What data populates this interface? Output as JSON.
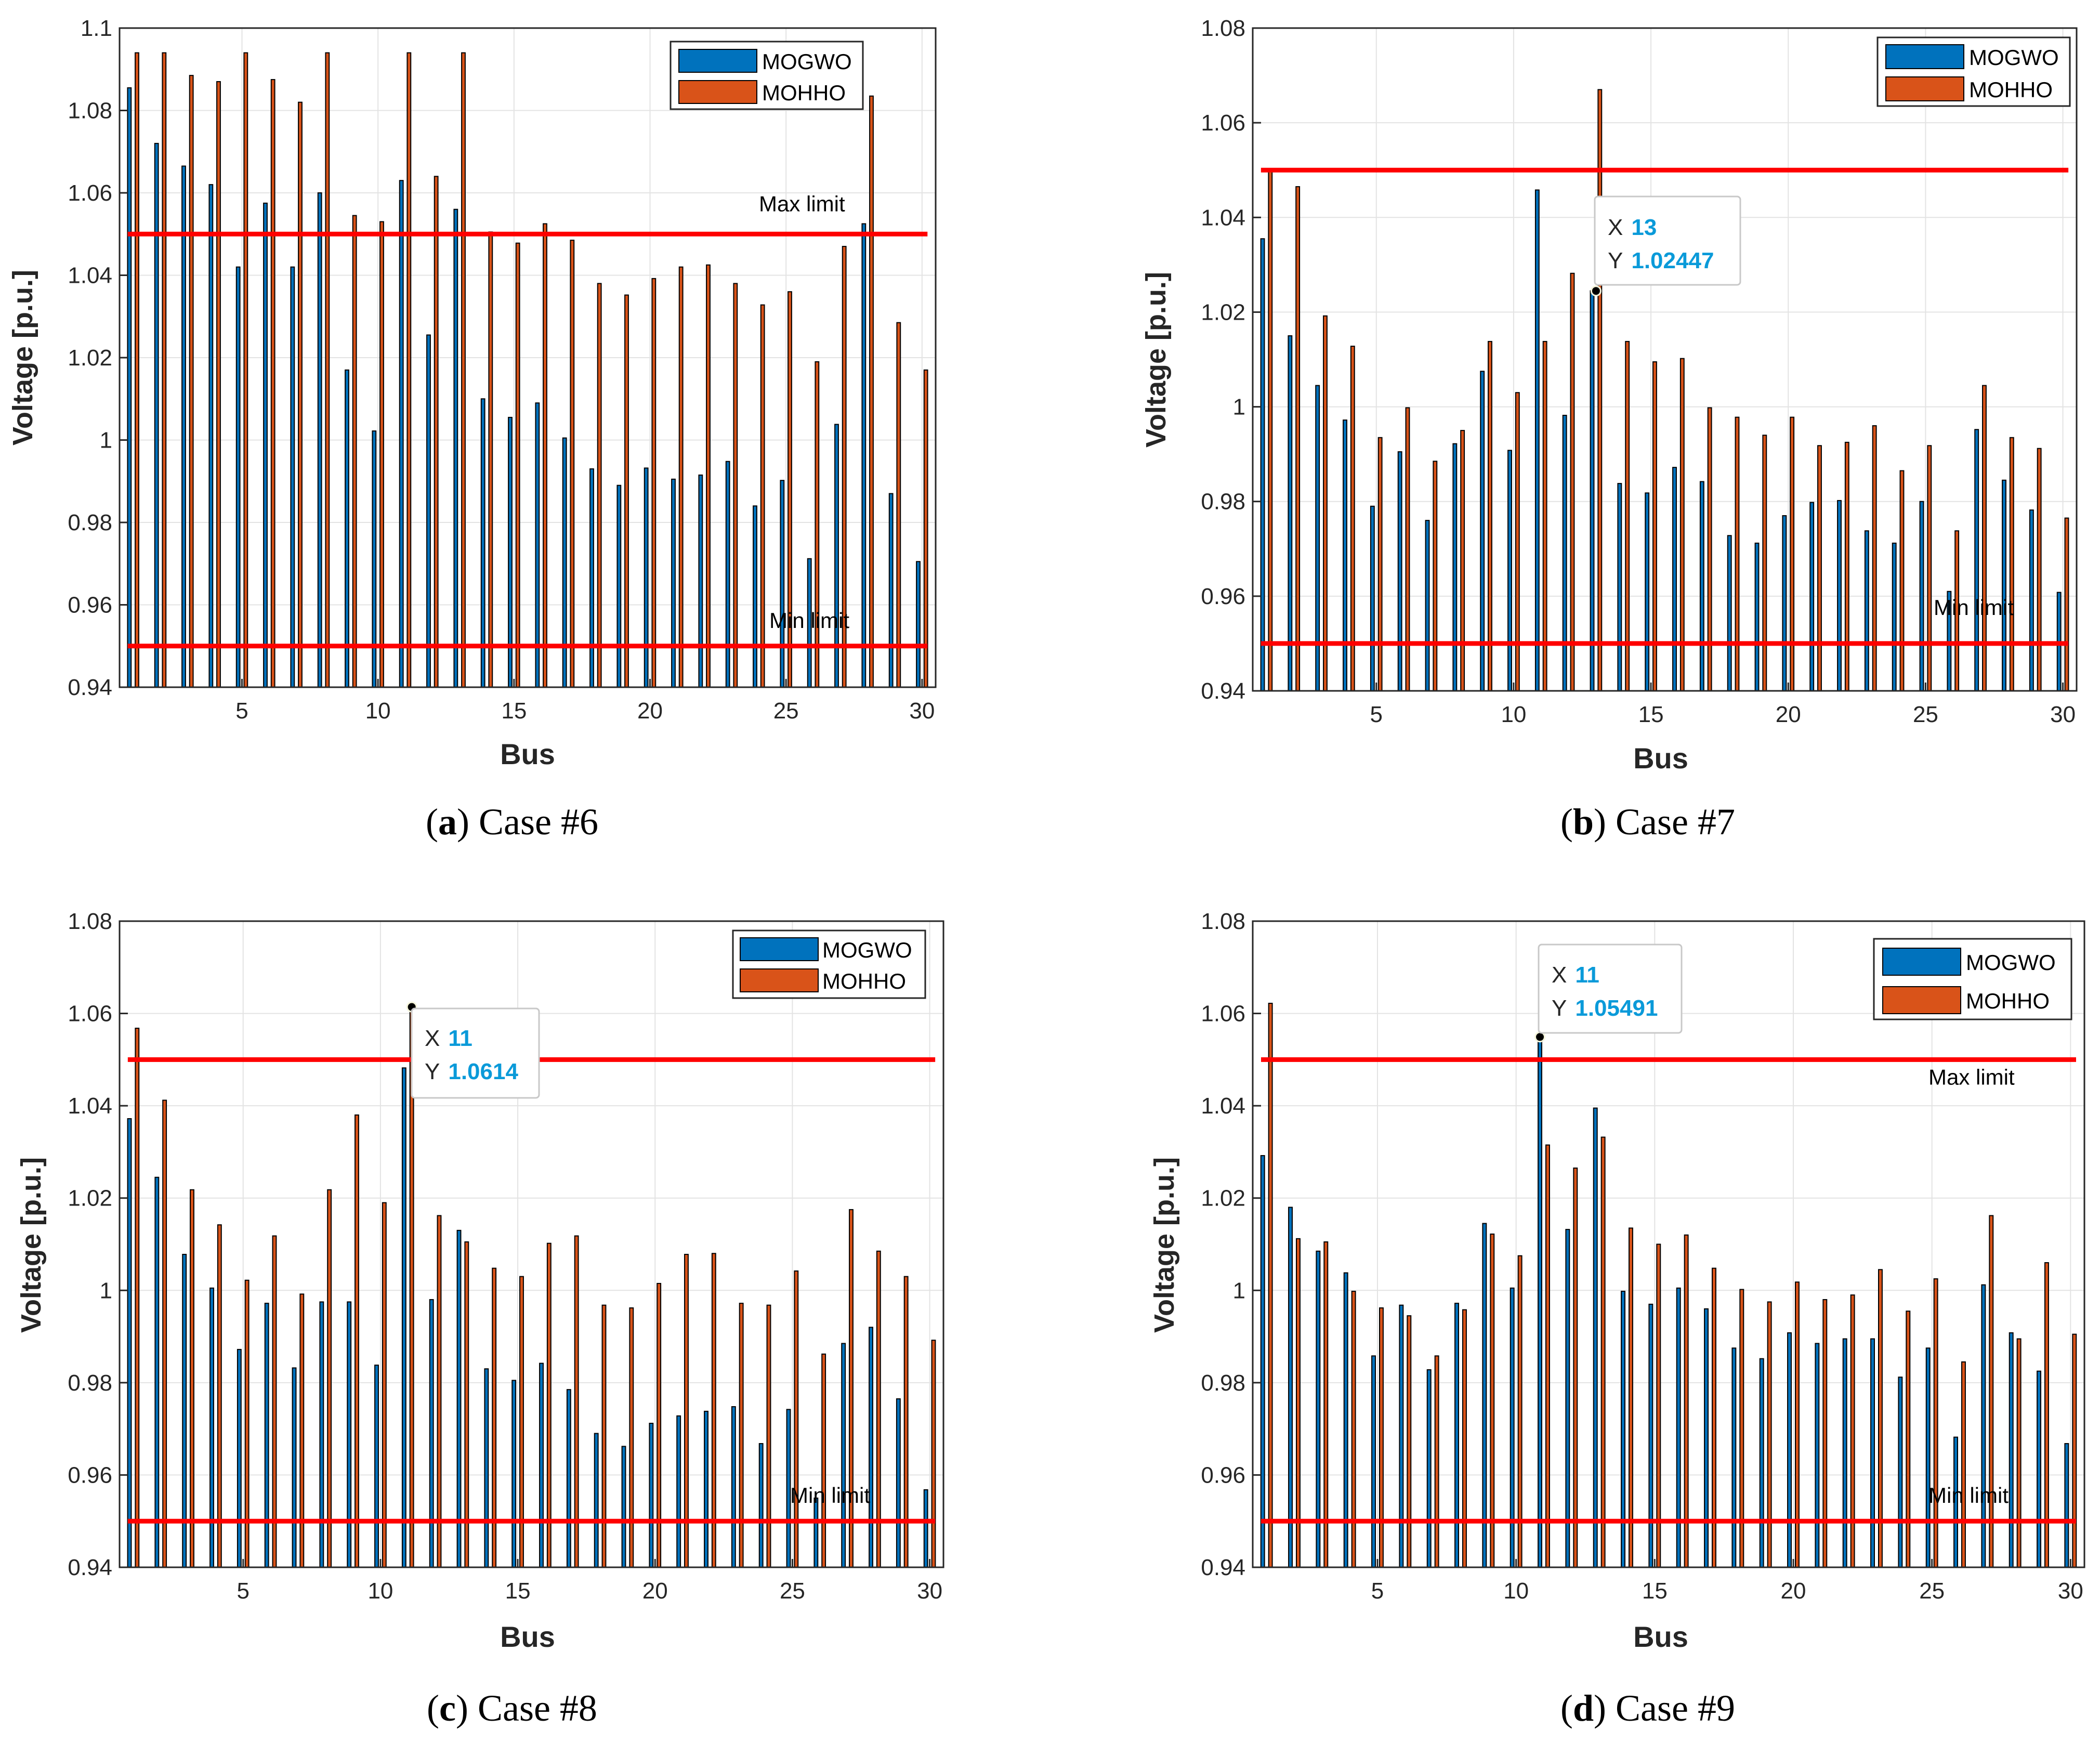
{
  "chart_data": [
    {
      "type": "bar",
      "panel_letter": "a",
      "caption_text": ") Case #6",
      "xlabel": "Bus",
      "ylabel": "Voltage [p.u.]",
      "ylim": [
        0.94,
        1.1
      ],
      "yticks": [
        "0.94",
        "0.96",
        "0.98",
        "1",
        "1.02",
        "1.04",
        "1.06",
        "1.08",
        "1.1"
      ],
      "xticks": [
        "5",
        "10",
        "15",
        "20",
        "25",
        "30"
      ],
      "grid": true,
      "legend": "top-right",
      "series": [
        {
          "name": "MOGWO",
          "color": "#0072BD",
          "values": [
            1.0855,
            1.072,
            1.0665,
            1.062,
            1.042,
            1.0575,
            1.042,
            1.06,
            1.017,
            1.0022,
            1.063,
            1.0255,
            1.056,
            1.01,
            1.0055,
            1.009,
            1.0005,
            0.993,
            0.989,
            0.9932,
            0.9905,
            0.9915,
            0.9948,
            0.984,
            0.9902,
            0.9712,
            1.0038,
            1.0525,
            0.987,
            0.9705
          ]
        },
        {
          "name": "MOHHO",
          "color": "#D95319",
          "values": [
            1.094,
            1.094,
            1.0885,
            1.087,
            1.094,
            1.0875,
            1.082,
            1.094,
            1.0545,
            1.053,
            1.094,
            1.064,
            1.094,
            1.0505,
            1.0478,
            1.0525,
            1.0485,
            1.038,
            1.0352,
            1.0392,
            1.042,
            1.0425,
            1.038,
            1.0328,
            1.036,
            1.019,
            1.047,
            1.0835,
            1.0285,
            1.017
          ]
        }
      ],
      "reference_lines": [
        {
          "value": 1.05,
          "label": "Max limit",
          "color": "#FF0000"
        },
        {
          "value": 0.95,
          "label": "Min limit",
          "color": "#FF0000"
        }
      ],
      "datatip": null
    },
    {
      "type": "bar",
      "panel_letter": "b",
      "caption_text": ") Case #7",
      "xlabel": "Bus",
      "ylabel": "Voltage [p.u.]",
      "ylim": [
        0.94,
        1.08
      ],
      "yticks": [
        "0.94",
        "0.96",
        "0.98",
        "1",
        "1.02",
        "1.04",
        "1.06",
        "1.08"
      ],
      "xticks": [
        "5",
        "10",
        "15",
        "20",
        "25",
        "30"
      ],
      "grid": true,
      "legend": "top-right",
      "series": [
        {
          "name": "MOGWO",
          "color": "#0072BD",
          "values": [
            1.0355,
            1.015,
            1.0045,
            0.9972,
            0.979,
            0.9905,
            0.976,
            0.9922,
            1.0075,
            0.9908,
            1.0458,
            0.9982,
            1.0245,
            0.9838,
            0.9818,
            0.9872,
            0.9842,
            0.9728,
            0.9712,
            0.977,
            0.9798,
            0.9802,
            0.9738,
            0.9712,
            0.98,
            0.961,
            0.9952,
            0.9845,
            0.9782,
            0.9608
          ]
        },
        {
          "name": "MOHHO",
          "color": "#D95319",
          "values": [
            1.05,
            1.0465,
            1.0192,
            1.0128,
            0.9935,
            0.9998,
            0.9885,
            0.995,
            1.0138,
            1.003,
            1.0138,
            1.0282,
            1.067,
            1.0138,
            1.0095,
            1.0102,
            0.9998,
            0.9978,
            0.994,
            0.9978,
            0.9918,
            0.9925,
            0.996,
            0.9865,
            0.9918,
            0.9738,
            1.0045,
            0.9935,
            0.9912,
            0.9765
          ]
        }
      ],
      "reference_lines": [
        {
          "value": 1.05,
          "label": "",
          "color": "#FF0000"
        },
        {
          "value": 0.95,
          "label": "Min limit",
          "color": "#FF0000"
        }
      ],
      "datatip": {
        "x_label": "X",
        "x_value": "13",
        "y_label": "Y",
        "y_value": "1.02447",
        "bus": 13,
        "y": 1.02447
      }
    },
    {
      "type": "bar",
      "panel_letter": "c",
      "caption_text": ") Case #8",
      "xlabel": "Bus",
      "ylabel": "Voltage [p.u.]",
      "ylim": [
        0.94,
        1.08
      ],
      "yticks": [
        "0.94",
        "0.96",
        "0.98",
        "1",
        "1.02",
        "1.04",
        "1.06",
        "1.08"
      ],
      "xticks": [
        "5",
        "10",
        "15",
        "20",
        "25",
        "30"
      ],
      "grid": true,
      "legend": "top-right",
      "series": [
        {
          "name": "MOGWO",
          "color": "#0072BD",
          "values": [
            1.0372,
            1.0245,
            1.0078,
            1.0005,
            0.9872,
            0.9972,
            0.9832,
            0.9975,
            0.9975,
            0.9838,
            1.0482,
            0.998,
            1.013,
            0.983,
            0.9805,
            0.9842,
            0.9785,
            0.969,
            0.9662,
            0.9712,
            0.9728,
            0.9738,
            0.9748,
            0.9668,
            0.9742,
            0.955,
            0.9885,
            0.992,
            0.9765,
            0.9568
          ]
        },
        {
          "name": "MOHHO",
          "color": "#D95319",
          "values": [
            1.0568,
            1.0412,
            1.0218,
            1.0142,
            1.0022,
            1.0118,
            0.9992,
            1.0218,
            1.038,
            1.019,
            1.0614,
            1.0162,
            1.0105,
            1.0048,
            1.003,
            1.0102,
            1.0118,
            0.9968,
            0.9962,
            1.0015,
            1.0078,
            1.008,
            0.9972,
            0.9968,
            1.0042,
            0.9862,
            1.0175,
            1.0085,
            1.003,
            0.9892
          ]
        }
      ],
      "reference_lines": [
        {
          "value": 1.05,
          "label": "",
          "color": "#FF0000"
        },
        {
          "value": 0.95,
          "label": "Min limit",
          "color": "#FF0000"
        }
      ],
      "datatip": {
        "x_label": "X",
        "x_value": "11",
        "y_label": "Y",
        "y_value": "1.0614",
        "bus": 11,
        "y": 1.0614
      }
    },
    {
      "type": "bar",
      "panel_letter": "d",
      "caption_text": ") Case #9",
      "xlabel": "Bus",
      "ylabel": "Voltage [p.u.]",
      "ylim": [
        0.94,
        1.08
      ],
      "yticks": [
        "0.94",
        "0.96",
        "0.98",
        "1",
        "1.02",
        "1.04",
        "1.06",
        "1.08"
      ],
      "xticks": [
        "5",
        "10",
        "15",
        "20",
        "25",
        "30"
      ],
      "grid": true,
      "legend": "top-right",
      "series": [
        {
          "name": "MOGWO",
          "color": "#0072BD",
          "values": [
            1.0292,
            1.018,
            1.0085,
            1.0038,
            0.9858,
            0.9968,
            0.9828,
            0.9972,
            1.0145,
            1.0005,
            1.05491,
            1.0132,
            1.0395,
            0.9998,
            0.997,
            1.0005,
            0.996,
            0.9875,
            0.9852,
            0.9908,
            0.9885,
            0.9895,
            0.9895,
            0.9812,
            0.9875,
            0.9682,
            1.0012,
            0.9908,
            0.9825,
            0.9668
          ]
        },
        {
          "name": "MOHHO",
          "color": "#D95319",
          "values": [
            1.0622,
            1.0112,
            1.0105,
            0.9998,
            0.9962,
            0.9945,
            0.9858,
            0.9958,
            1.0122,
            1.0075,
            1.0315,
            1.0265,
            1.0332,
            1.0135,
            1.01,
            1.012,
            1.0048,
            1.0002,
            0.9975,
            1.0018,
            0.998,
            0.999,
            1.0045,
            0.9955,
            1.0025,
            0.9845,
            1.0162,
            0.9895,
            1.006,
            0.9905
          ]
        }
      ],
      "reference_lines": [
        {
          "value": 1.05,
          "label": "Max limit",
          "color": "#FF0000"
        },
        {
          "value": 0.95,
          "label": "Min limit",
          "color": "#FF0000"
        }
      ],
      "datatip": {
        "x_label": "X",
        "x_value": "11",
        "y_label": "Y",
        "y_value": "1.05491",
        "bus": 11,
        "y": 1.05491
      }
    }
  ]
}
